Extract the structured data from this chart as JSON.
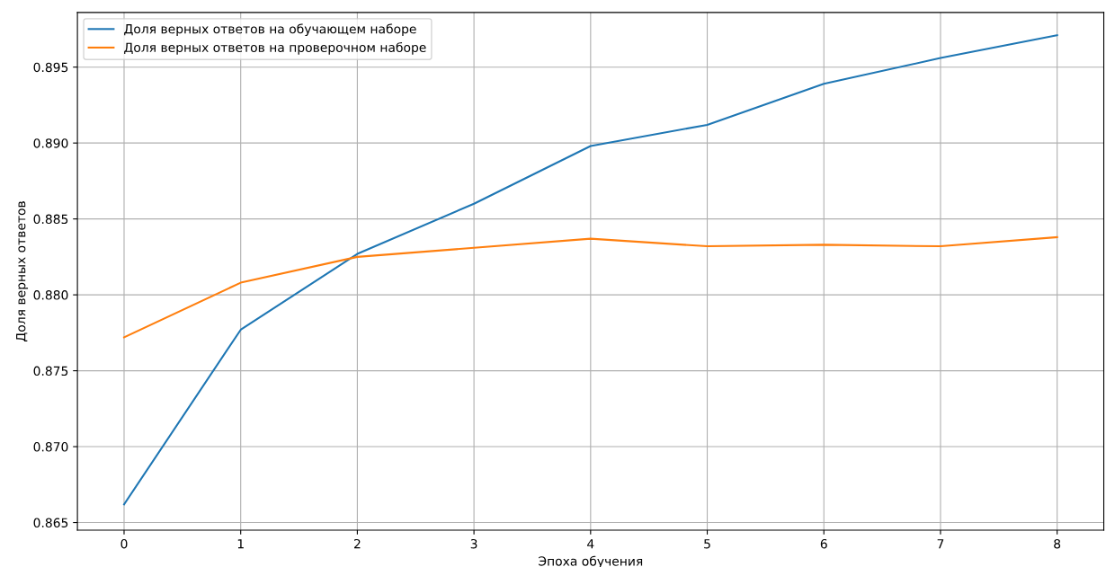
{
  "chart_data": {
    "type": "line",
    "xlabel": "Эпоха обучения",
    "ylabel": "Доля верных ответов",
    "x": [
      0,
      1,
      2,
      3,
      4,
      5,
      6,
      7,
      8
    ],
    "series": [
      {
        "name": "Доля верных ответов на обучающем наборе",
        "color": "#1f77b4",
        "values": [
          0.8662,
          0.8777,
          0.8827,
          0.886,
          0.8898,
          0.8912,
          0.8939,
          0.8956,
          0.8971
        ]
      },
      {
        "name": "Доля верных ответов на проверочном наборе",
        "color": "#ff7f0e",
        "values": [
          0.8772,
          0.8808,
          0.8825,
          0.8831,
          0.8837,
          0.8832,
          0.8833,
          0.8832,
          0.8838
        ]
      }
    ],
    "xlim": [
      -0.4,
      8.4
    ],
    "xticks": [
      0,
      1,
      2,
      3,
      4,
      5,
      6,
      7,
      8
    ],
    "ylim": [
      0.8645,
      0.8986
    ],
    "yticks": [
      {
        "value": 0.865,
        "label": "0.865"
      },
      {
        "value": 0.87,
        "label": "0.870"
      },
      {
        "value": 0.875,
        "label": "0.875"
      },
      {
        "value": 0.88,
        "label": "0.880"
      },
      {
        "value": 0.885,
        "label": "0.885"
      },
      {
        "value": 0.89,
        "label": "0.890"
      },
      {
        "value": 0.895,
        "label": "0.895"
      }
    ],
    "grid": true,
    "legend": "top left",
    "marker": "none",
    "line_style": "solid"
  }
}
